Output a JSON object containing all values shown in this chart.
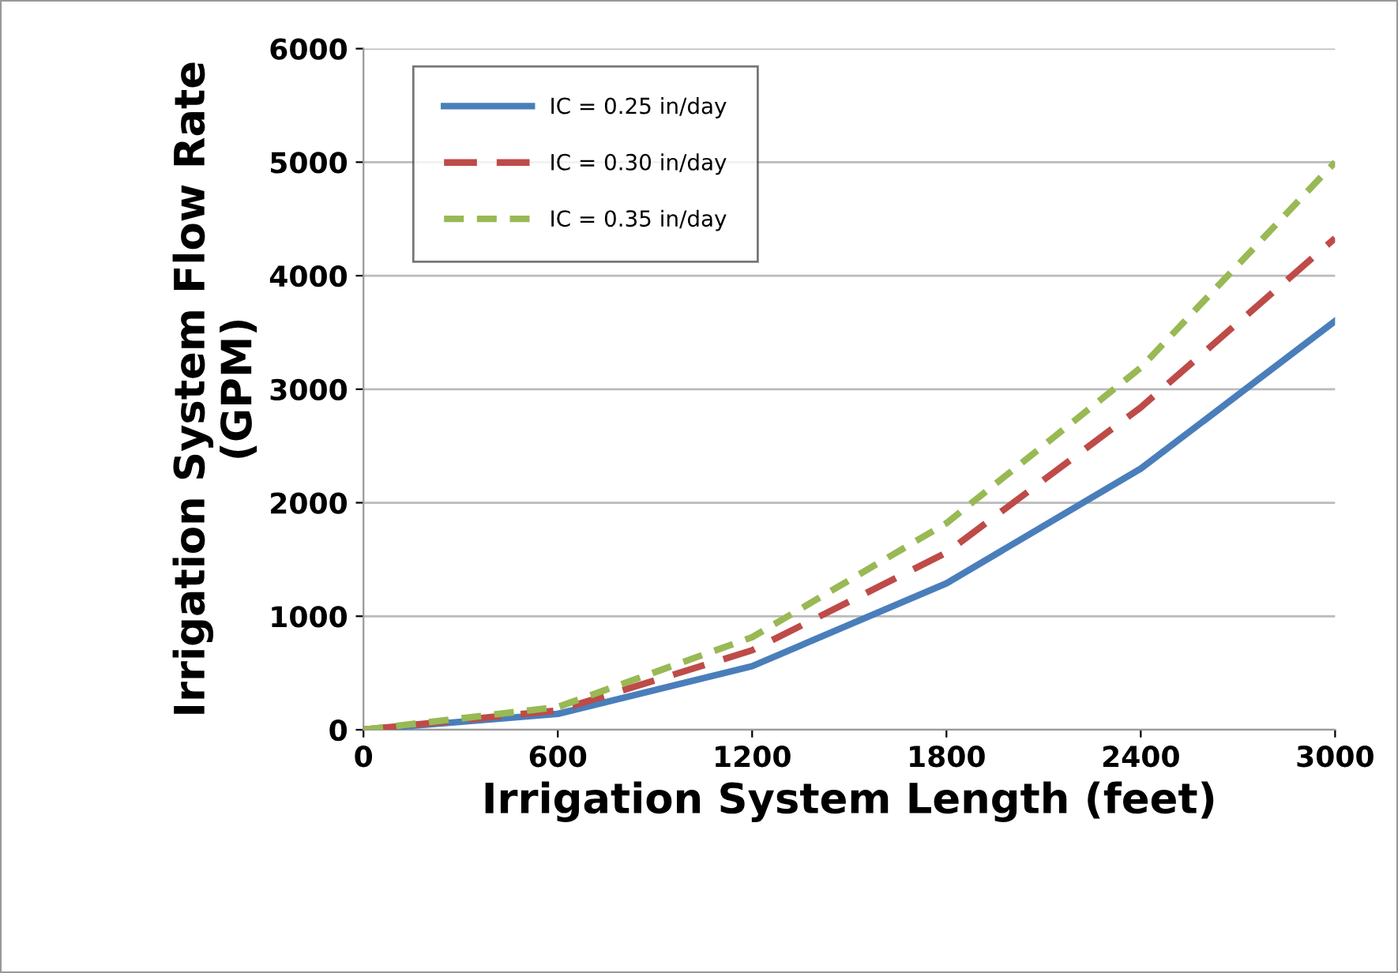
{
  "chart_data": {
    "type": "line",
    "xlabel": "Irrigation System Length (feet)",
    "ylabel": "Irrigation System Flow Rate\n(GPM)",
    "x": [
      0,
      600,
      1200,
      1800,
      2400,
      3000
    ],
    "series": [
      {
        "name": "IC = 0.25 in/day",
        "color": "#4a7ebb",
        "line_style": "solid",
        "values": [
          0,
          140,
          560,
          1290,
          2300,
          3600
        ]
      },
      {
        "name": "IC = 0.30 in/day",
        "color": "#be4b48",
        "line_style": "dashed",
        "values": [
          0,
          170,
          700,
          1560,
          2840,
          4330
        ]
      },
      {
        "name": "IC = 0.35 in/day",
        "color": "#98b954",
        "line_style": "dotted",
        "values": [
          0,
          200,
          815,
          1820,
          3190,
          5000
        ]
      }
    ],
    "xlim": [
      0,
      3000
    ],
    "xticks": [
      0,
      600,
      1200,
      1800,
      2400,
      3000
    ],
    "ylim": [
      0,
      6000
    ],
    "yticks": [
      0,
      1000,
      2000,
      3000,
      4000,
      5000,
      6000
    ],
    "grid": "y",
    "legend": "top left"
  }
}
